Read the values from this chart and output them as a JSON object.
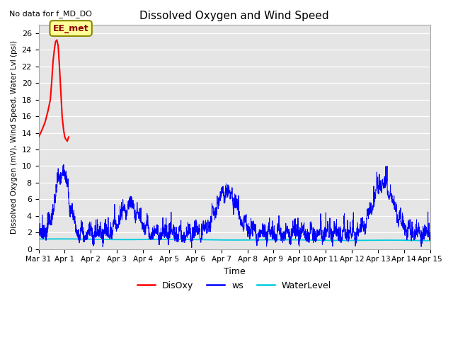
{
  "title": "Dissolved Oxygen and Wind Speed",
  "subtitle": "No data for f_MD_DO",
  "xlabel": "Time",
  "ylabel": "Dissolved Oxygen (mV), Wind Speed, Water Lvl (psi)",
  "ylim": [
    0,
    27
  ],
  "yticks": [
    0,
    2,
    4,
    6,
    8,
    10,
    12,
    14,
    16,
    18,
    20,
    22,
    24,
    26
  ],
  "bg_color": "#e5e5e5",
  "disoxy_color": "red",
  "ws_color": "blue",
  "waterlevel_color": "#00ccdd",
  "annotation_text": "EE_met",
  "xtick_positions": [
    0,
    1,
    2,
    3,
    4,
    5,
    6,
    7,
    8,
    9,
    10,
    11,
    12,
    13,
    14,
    15
  ],
  "xtick_labels": [
    "Mar 31",
    "Apr 1",
    "Apr 2",
    "Apr 3",
    "Apr 4",
    "Apr 5",
    "Apr 6",
    "Apr 7",
    "Apr 8",
    "Apr 9",
    "Apr 10",
    "Apr 11",
    "Apr 12",
    "Apr 13",
    "Apr 14",
    "Apr 15"
  ]
}
